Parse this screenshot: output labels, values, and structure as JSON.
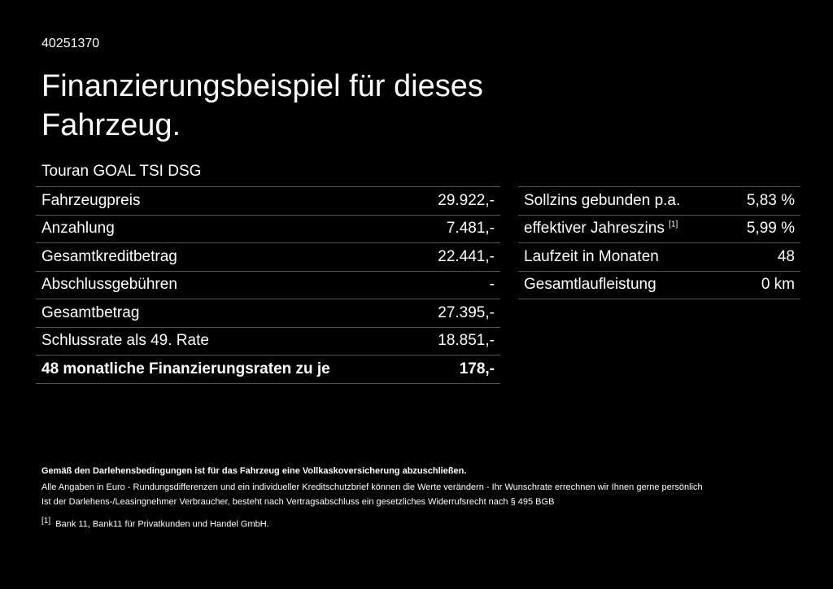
{
  "header": {
    "id": "40251370",
    "title": "Finanzierungsbeispiel für dieses Fahrzeug.",
    "model": "Touran GOAL TSI DSG"
  },
  "left_table": {
    "rows": [
      {
        "label": "Fahrzeugpreis",
        "value": "29.922,-"
      },
      {
        "label": "Anzahlung",
        "value": "7.481,-"
      },
      {
        "label": "Gesamtkreditbetrag",
        "value": "22.441,-"
      },
      {
        "label": "Abschlussgebühren",
        "value": "-"
      },
      {
        "label": "Gesamtbetrag",
        "value": "27.395,-"
      },
      {
        "label": "Schlussrate als 49. Rate",
        "value": "18.851,-"
      },
      {
        "label": "48 monatliche Finanzierungsraten zu je",
        "value": "178,-"
      }
    ]
  },
  "right_table": {
    "rows": [
      {
        "label": "Sollzins gebunden p.a.",
        "value": "5,83 %"
      },
      {
        "label": "effektiver Jahreszins",
        "note": "[1]",
        "value": "5,99 %"
      },
      {
        "label": "Laufzeit in Monaten",
        "value": "48"
      },
      {
        "label": "Gesamtlaufleistung",
        "value": "0 km"
      }
    ]
  },
  "footnotes": {
    "bold": "Gemäß den Darlehensbedingungen ist für das Fahrzeug eine Vollkaskoversicherung abzuschließen.",
    "lines": [
      "Alle Angaben in Euro - Rundungsdifferenzen und ein individueller Kreditschutzbrief können die Werte verändern - Ihr Wunschrate errechnen wir Ihnen gerne persönlich",
      "Ist der Darlehens-/Leasingnehmer Verbraucher, besteht nach Vertragsabschluss ein gesetzliches Widerrufsrecht nach § 495 BGB"
    ],
    "ref": {
      "marker": "[1]",
      "text": "Bank 11, Bank11 für Privatkunden und Handel GmbH."
    }
  }
}
